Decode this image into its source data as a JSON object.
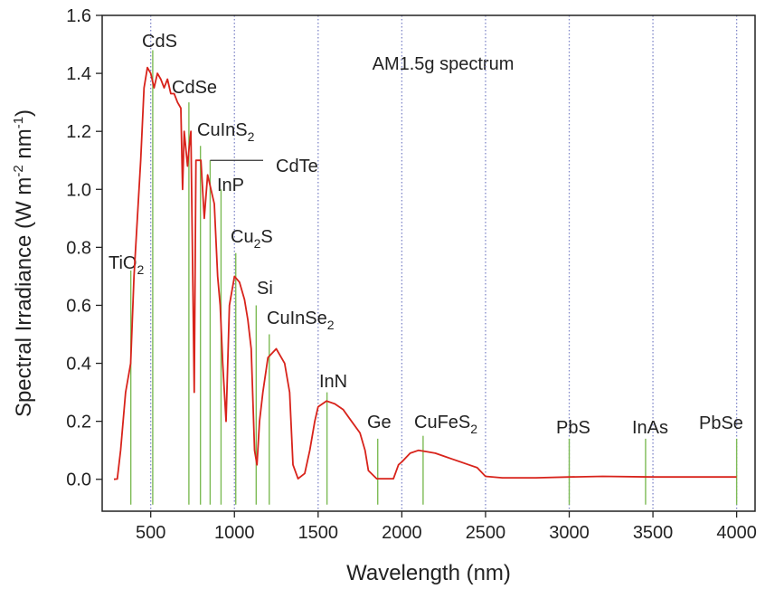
{
  "chart_data": {
    "type": "line",
    "x_label": "Wavelength (nm)",
    "y_label": [
      {
        "text": "Spectral Irradiance (W m"
      },
      {
        "text": "-2",
        "sup": true
      },
      {
        "text": " nm"
      },
      {
        "text": "-1",
        "sup": true
      },
      {
        "text": ")"
      }
    ],
    "annotation": "AM1.5g spectrum",
    "xlim": [
      210,
      4110
    ],
    "ylim": [
      -0.11,
      1.6
    ],
    "xticks": [
      500,
      1000,
      1500,
      2000,
      2500,
      3000,
      3500,
      4000
    ],
    "yticks": [
      {
        "value": 0,
        "label": "0.0"
      },
      0.2,
      0.4,
      0.6,
      0.8,
      {
        "value": 1,
        "label": "1.0"
      },
      1.2,
      1.4,
      1.6
    ],
    "grid": "x",
    "series": [
      {
        "color": "#d8231b",
        "x": [
          280,
          300,
          320,
          350,
          380,
          400,
          420,
          440,
          460,
          480,
          500,
          520,
          540,
          560,
          580,
          600,
          620,
          640,
          660,
          680,
          690,
          700,
          720,
          730,
          740,
          760,
          770,
          800,
          820,
          840,
          860,
          880,
          900,
          915,
          930,
          950,
          970,
          1000,
          1030,
          1060,
          1080,
          1100,
          1120,
          1135,
          1150,
          1170,
          1200,
          1250,
          1280,
          1300,
          1330,
          1350,
          1380,
          1420,
          1450,
          1480,
          1500,
          1550,
          1600,
          1650,
          1700,
          1750,
          1780,
          1800,
          1850,
          1950,
          1980,
          2000,
          2050,
          2100,
          2150,
          2200,
          2250,
          2300,
          2400,
          2450,
          2500,
          2600,
          2800,
          3000,
          3200,
          3500,
          4000
        ],
        "values": [
          0,
          0.001,
          0.1,
          0.3,
          0.4,
          0.7,
          0.9,
          1.1,
          1.35,
          1.42,
          1.4,
          1.35,
          1.4,
          1.38,
          1.35,
          1.38,
          1.33,
          1.33,
          1.3,
          1.28,
          1.0,
          1.2,
          1.08,
          1.15,
          1.2,
          0.3,
          1.1,
          1.1,
          0.9,
          1.05,
          1.0,
          0.95,
          0.7,
          0.6,
          0.4,
          0.2,
          0.6,
          0.7,
          0.68,
          0.62,
          0.55,
          0.45,
          0.1,
          0.05,
          0.2,
          0.3,
          0.42,
          0.45,
          0.42,
          0.4,
          0.3,
          0.05,
          0.002,
          0.02,
          0.1,
          0.2,
          0.25,
          0.27,
          0.26,
          0.24,
          0.2,
          0.16,
          0.1,
          0.03,
          0.002,
          0.002,
          0.05,
          0.06,
          0.09,
          0.1,
          0.095,
          0.09,
          0.08,
          0.07,
          0.05,
          0.04,
          0.01,
          0.005,
          0.005,
          0.008,
          0.01,
          0.008,
          0.008
        ]
      }
    ],
    "markers_color": "#7dbb55",
    "markers": [
      {
        "x": 381,
        "y": 0.72,
        "label": [
          {
            "text": "TiO"
          },
          {
            "text": "2",
            "sub": true
          }
        ]
      },
      {
        "x": 512,
        "y": 1.48,
        "label": [
          {
            "text": "CdS"
          }
        ]
      },
      {
        "x": 728,
        "y": 1.3,
        "label": [
          {
            "text": "CdSe"
          }
        ]
      },
      {
        "x": 797,
        "y": 1.15,
        "label": [
          {
            "text": "CuInS"
          },
          {
            "text": "2",
            "sub": true
          }
        ]
      },
      {
        "x": 855,
        "y": 1.1,
        "label": [
          {
            "text": "CdTe"
          }
        ]
      },
      {
        "x": 920,
        "y": 1.0,
        "label": [
          {
            "text": "InP"
          }
        ]
      },
      {
        "x": 1008,
        "y": 0.78,
        "label": [
          {
            "text": "Cu"
          },
          {
            "text": "2",
            "sub": true
          },
          {
            "text": "S"
          }
        ]
      },
      {
        "x": 1130,
        "y": 0.6,
        "label": [
          {
            "text": "Si"
          }
        ]
      },
      {
        "x": 1208,
        "y": 0.5,
        "label": [
          {
            "text": "CuInSe"
          },
          {
            "text": "2",
            "sub": true
          }
        ]
      },
      {
        "x": 1553,
        "y": 0.3,
        "label": [
          {
            "text": "InN"
          }
        ]
      },
      {
        "x": 1856,
        "y": 0.14,
        "label": [
          {
            "text": "Ge"
          }
        ]
      },
      {
        "x": 2127,
        "y": 0.15,
        "label": [
          {
            "text": "CuFeS"
          },
          {
            "text": "2",
            "sub": true
          }
        ]
      },
      {
        "x": 3000,
        "y": 0.14,
        "label": [
          {
            "text": "PbS"
          }
        ]
      },
      {
        "x": 3456,
        "y": 0.14,
        "label": [
          {
            "text": "InAs"
          }
        ]
      },
      {
        "x": 4000,
        "y": 0.14,
        "label": [
          {
            "text": "PbSe"
          }
        ]
      }
    ]
  }
}
